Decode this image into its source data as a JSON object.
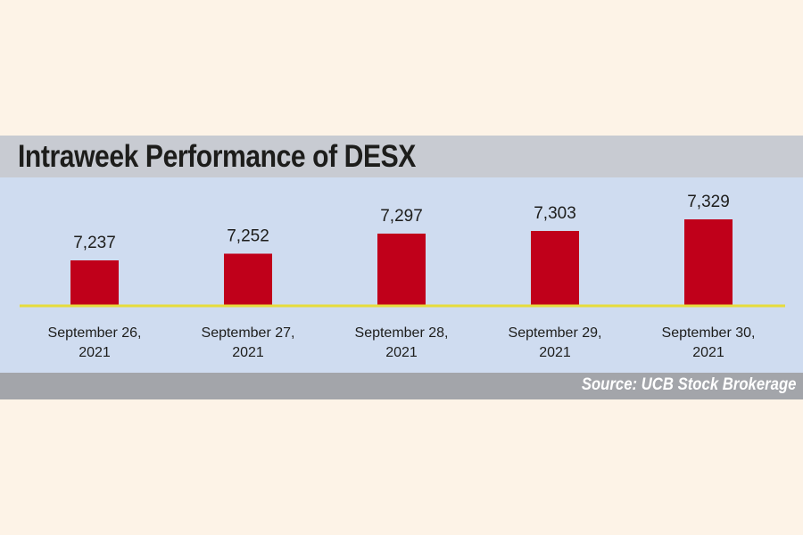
{
  "title": "Intraweek Performance of DESX",
  "source": "Source: UCB Stock Brokerage",
  "colors": {
    "bar": "#c0001a",
    "baseline": "#e6dc3c",
    "panel": "#cfdcf0",
    "band": "#c8cbd2",
    "source_band": "#a3a5aa",
    "page": "#fdf3e7"
  },
  "chart_data": {
    "type": "bar",
    "title": "Intraweek Performance of DESX",
    "categories": [
      [
        "September 26,",
        "2021"
      ],
      [
        "September 27,",
        "2021"
      ],
      [
        "September 28,",
        "2021"
      ],
      [
        "September 29,",
        "2021"
      ],
      [
        "September 30,",
        "2021"
      ]
    ],
    "values": [
      7237,
      7252,
      7297,
      7303,
      7329
    ],
    "value_labels": [
      "7,237",
      "7,252",
      "7,297",
      "7,303",
      "7,329"
    ],
    "xlabel": "",
    "ylabel": "",
    "grid": false,
    "legend": "none"
  }
}
